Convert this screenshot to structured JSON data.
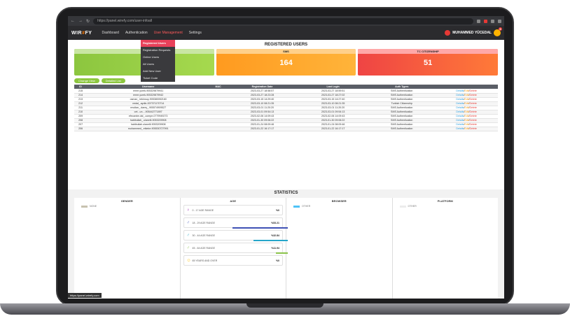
{
  "browser": {
    "url": "https://panel.wirefy.com/user-infoall"
  },
  "app": {
    "logo_prefix": "WIR",
    "logo_accent": "#",
    "logo_suffix": "FY",
    "menu": [
      "Dashboard",
      "Authentication",
      "User Management",
      "Settings"
    ],
    "user_name": "MUHAMMED YÜCEDAL",
    "notif_count": "9"
  },
  "dropdown": [
    "Registered Users",
    "Registration Requests",
    "Online Users",
    "All Users",
    "Add New User",
    "Ticket Code"
  ],
  "registered_title": "REGISTERED USERS",
  "cards": [
    {
      "label": "",
      "value": ""
    },
    {
      "label": "SMS",
      "value": "164"
    },
    {
      "label": "TC CITIZENSHIP",
      "value": "51"
    }
  ],
  "buttons": {
    "change_view": "Change View",
    "detailed_list": "Detailed List"
  },
  "table": {
    "headers": [
      "ID",
      "Username",
      "MAC",
      "Registration Date",
      "Last Login",
      "Auth Types",
      ""
    ],
    "rows": [
      [
        "215",
        "emre.yurek-905329879941",
        "",
        "2023-03-27 18:58:57",
        "2023-03-27 18:59:51",
        "SMS Authentication"
      ],
      [
        "214",
        "emre.yurek-905329879942",
        "",
        "2023-03-27 18:23:28",
        "2023-03-27 18:27:02",
        "SMS Authentication"
      ],
      [
        "213",
        "osman_.tekinsoy-905380052160",
        "",
        "2023-03-15 14:29:40",
        "2023-03-15 14:27:40",
        "SMS Authentication"
      ],
      [
        "212",
        "vedat_.aydin-007371170714",
        "",
        "2023-03-10 08:21:35",
        "2023-03-10 08:21:35",
        "Turkish Citizenship"
      ],
      [
        "211",
        "rmutlan_.darey_.905574909527",
        "",
        "2023-03-01 11:20:20",
        "2023-03-01 11:20:20",
        "SMS Authentication"
      ],
      [
        "210",
        "cet...un...-905442771897",
        "",
        "2023-03-01 09:54:13",
        "2023-03-01 09:54:13",
        "SMS Authentication"
      ],
      [
        "209",
        "efecanbe.dal_.compe-0779949273",
        "",
        "2023-02-06 14:09:43",
        "2023-02-06 14:09:43",
        "SMS Authentication"
      ],
      [
        "208",
        "habibullah_.ulanelli-9053209908",
        "",
        "2023-01-30 09:06:22",
        "2023-01-30 09:06:22",
        "SMS Authentication"
      ],
      [
        "207",
        "habibullah.ulanelli-9053209908",
        "",
        "2023-01-24 08:09:46",
        "2023-01-24 08:09:46",
        "SMS Authentication"
      ],
      [
        "206",
        "muhammed_.etkeke-905530727991",
        "",
        "2023-01-22 16:17:17",
        "2023-01-22 16:17:17",
        "SMS Authentication"
      ]
    ],
    "actions": [
      "Details",
      "Edit",
      "Delete"
    ]
  },
  "statistics": {
    "title": "STATISTICS",
    "gender": {
      "title": "GENDER",
      "legend": "NONE"
    },
    "age": {
      "title": "AGE",
      "rows": [
        {
          "label": "0 - 17 AGE RANGE",
          "value": "%0",
          "icon": "female-icon",
          "bar_color": "#9c27b0",
          "bar_pct": 0
        },
        {
          "label": "18 - 29 AGE RANGE",
          "value": "%53.21",
          "icon": "male-icon",
          "bar_color": "#3f51b5",
          "bar_pct": 53.21
        },
        {
          "label": "30 - 44 AGE RANGE",
          "value": "%32.84",
          "icon": "male-icon",
          "bar_color": "#26a6c9",
          "bar_pct": 32.84
        },
        {
          "label": "45 - 64 AGE RANGE",
          "value": "%11.94",
          "icon": "male-icon",
          "bar_color": "#8bc34a",
          "bar_pct": 11.94
        },
        {
          "label": "65 YEARS AND OVER",
          "value": "%0",
          "icon": "elder-icon",
          "bar_color": "#ffc107",
          "bar_pct": 0
        }
      ]
    },
    "browser": {
      "title": "BROWSER",
      "legend": "OTHER"
    },
    "platform": {
      "title": "PLATFORM",
      "legend": "OTHER"
    }
  },
  "status_url": "https://panel.wirefy.com"
}
